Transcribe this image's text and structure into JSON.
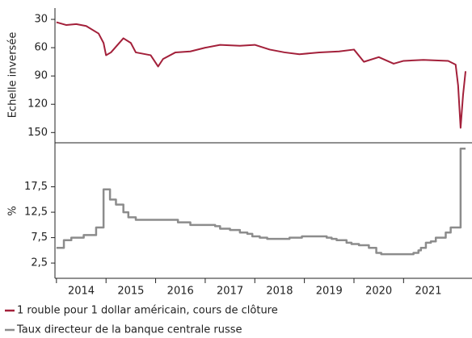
{
  "chart_data": [
    {
      "type": "line",
      "y_label": "Echelle inversée",
      "y_inverted": true,
      "xlim": [
        2013.97,
        2022.38
      ],
      "ylim": [
        18,
        160
      ],
      "yticks": [
        30,
        60,
        90,
        120,
        150
      ],
      "series": [
        {
          "name": "1 rouble pour 1 dollar américain, cours de clôture",
          "color": "#a3203a",
          "x": [
            2014.0,
            2014.2,
            2014.4,
            2014.6,
            2014.85,
            2014.95,
            2015.0,
            2015.1,
            2015.35,
            2015.5,
            2015.6,
            2015.9,
            2016.05,
            2016.15,
            2016.4,
            2016.7,
            2017.0,
            2017.3,
            2017.7,
            2018.0,
            2018.3,
            2018.6,
            2018.9,
            2019.3,
            2019.7,
            2020.0,
            2020.2,
            2020.5,
            2020.8,
            2021.0,
            2021.4,
            2021.9,
            2022.05,
            2022.1,
            2022.15,
            2022.2,
            2022.25
          ],
          "values": [
            33,
            36,
            35,
            37,
            45,
            55,
            68,
            65,
            50,
            55,
            65,
            68,
            80,
            72,
            65,
            64,
            60,
            57,
            58,
            57,
            62,
            65,
            67,
            65,
            64,
            62,
            75,
            70,
            77,
            74,
            73,
            74,
            78,
            100,
            145,
            110,
            85
          ]
        }
      ]
    },
    {
      "type": "line",
      "step": "post",
      "y_label": "%",
      "xlim": [
        2013.97,
        2022.38
      ],
      "ylim": [
        -0.5,
        26
      ],
      "yticks": [
        {
          "value": 2.5,
          "label": "2,5"
        },
        {
          "value": 7.5,
          "label": "7,5"
        },
        {
          "value": 12.5,
          "label": "12,5"
        },
        {
          "value": 17.5,
          "label": "17,5"
        }
      ],
      "xticks": [
        2014,
        2015,
        2016,
        2017,
        2018,
        2019,
        2020,
        2021
      ],
      "series": [
        {
          "name": "Taux directeur de la banque centrale russe",
          "color": "#8c8c8c",
          "x": [
            2014.0,
            2014.15,
            2014.3,
            2014.55,
            2014.8,
            2014.95,
            2015.08,
            2015.2,
            2015.35,
            2015.45,
            2015.6,
            2016.45,
            2016.7,
            2017.2,
            2017.3,
            2017.5,
            2017.7,
            2017.85,
            2017.95,
            2018.1,
            2018.25,
            2018.7,
            2018.95,
            2019.45,
            2019.55,
            2019.65,
            2019.85,
            2019.95,
            2020.1,
            2020.3,
            2020.45,
            2020.55,
            2021.2,
            2021.3,
            2021.35,
            2021.45,
            2021.55,
            2021.65,
            2021.85,
            2021.95,
            2022.15,
            2022.25
          ],
          "values": [
            5.5,
            7,
            7.5,
            8,
            9.5,
            17,
            15,
            14,
            12.5,
            11.5,
            11,
            10.5,
            10,
            9.75,
            9.25,
            9,
            8.5,
            8.25,
            7.75,
            7.5,
            7.25,
            7.5,
            7.75,
            7.5,
            7.25,
            7,
            6.5,
            6.25,
            6,
            5.5,
            4.5,
            4.25,
            4.5,
            5,
            5.5,
            6.5,
            6.75,
            7.5,
            8.5,
            9.5,
            25,
            25
          ]
        }
      ]
    }
  ]
}
